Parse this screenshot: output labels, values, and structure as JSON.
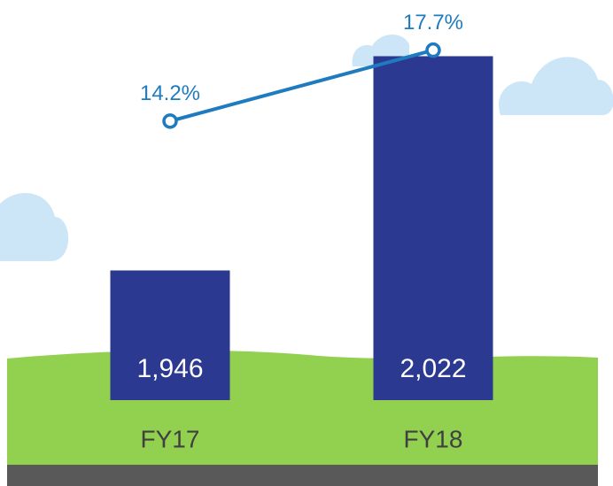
{
  "chart_data": {
    "type": "bar",
    "categories": [
      "FY17",
      "FY18"
    ],
    "series": [
      {
        "type": "bar",
        "color": "#2b3990",
        "values": [
          1946,
          2022
        ],
        "value_labels": [
          "1,946",
          "2,022"
        ]
      },
      {
        "type": "line",
        "axis": "y2",
        "color": "#1f7bbf",
        "values": [
          14.2,
          17.7
        ],
        "value_labels": [
          "14.2%",
          "17.7%"
        ]
      }
    ],
    "ylim": [
      1900,
      2030
    ],
    "y2lim": [
      10,
      20
    ]
  }
}
